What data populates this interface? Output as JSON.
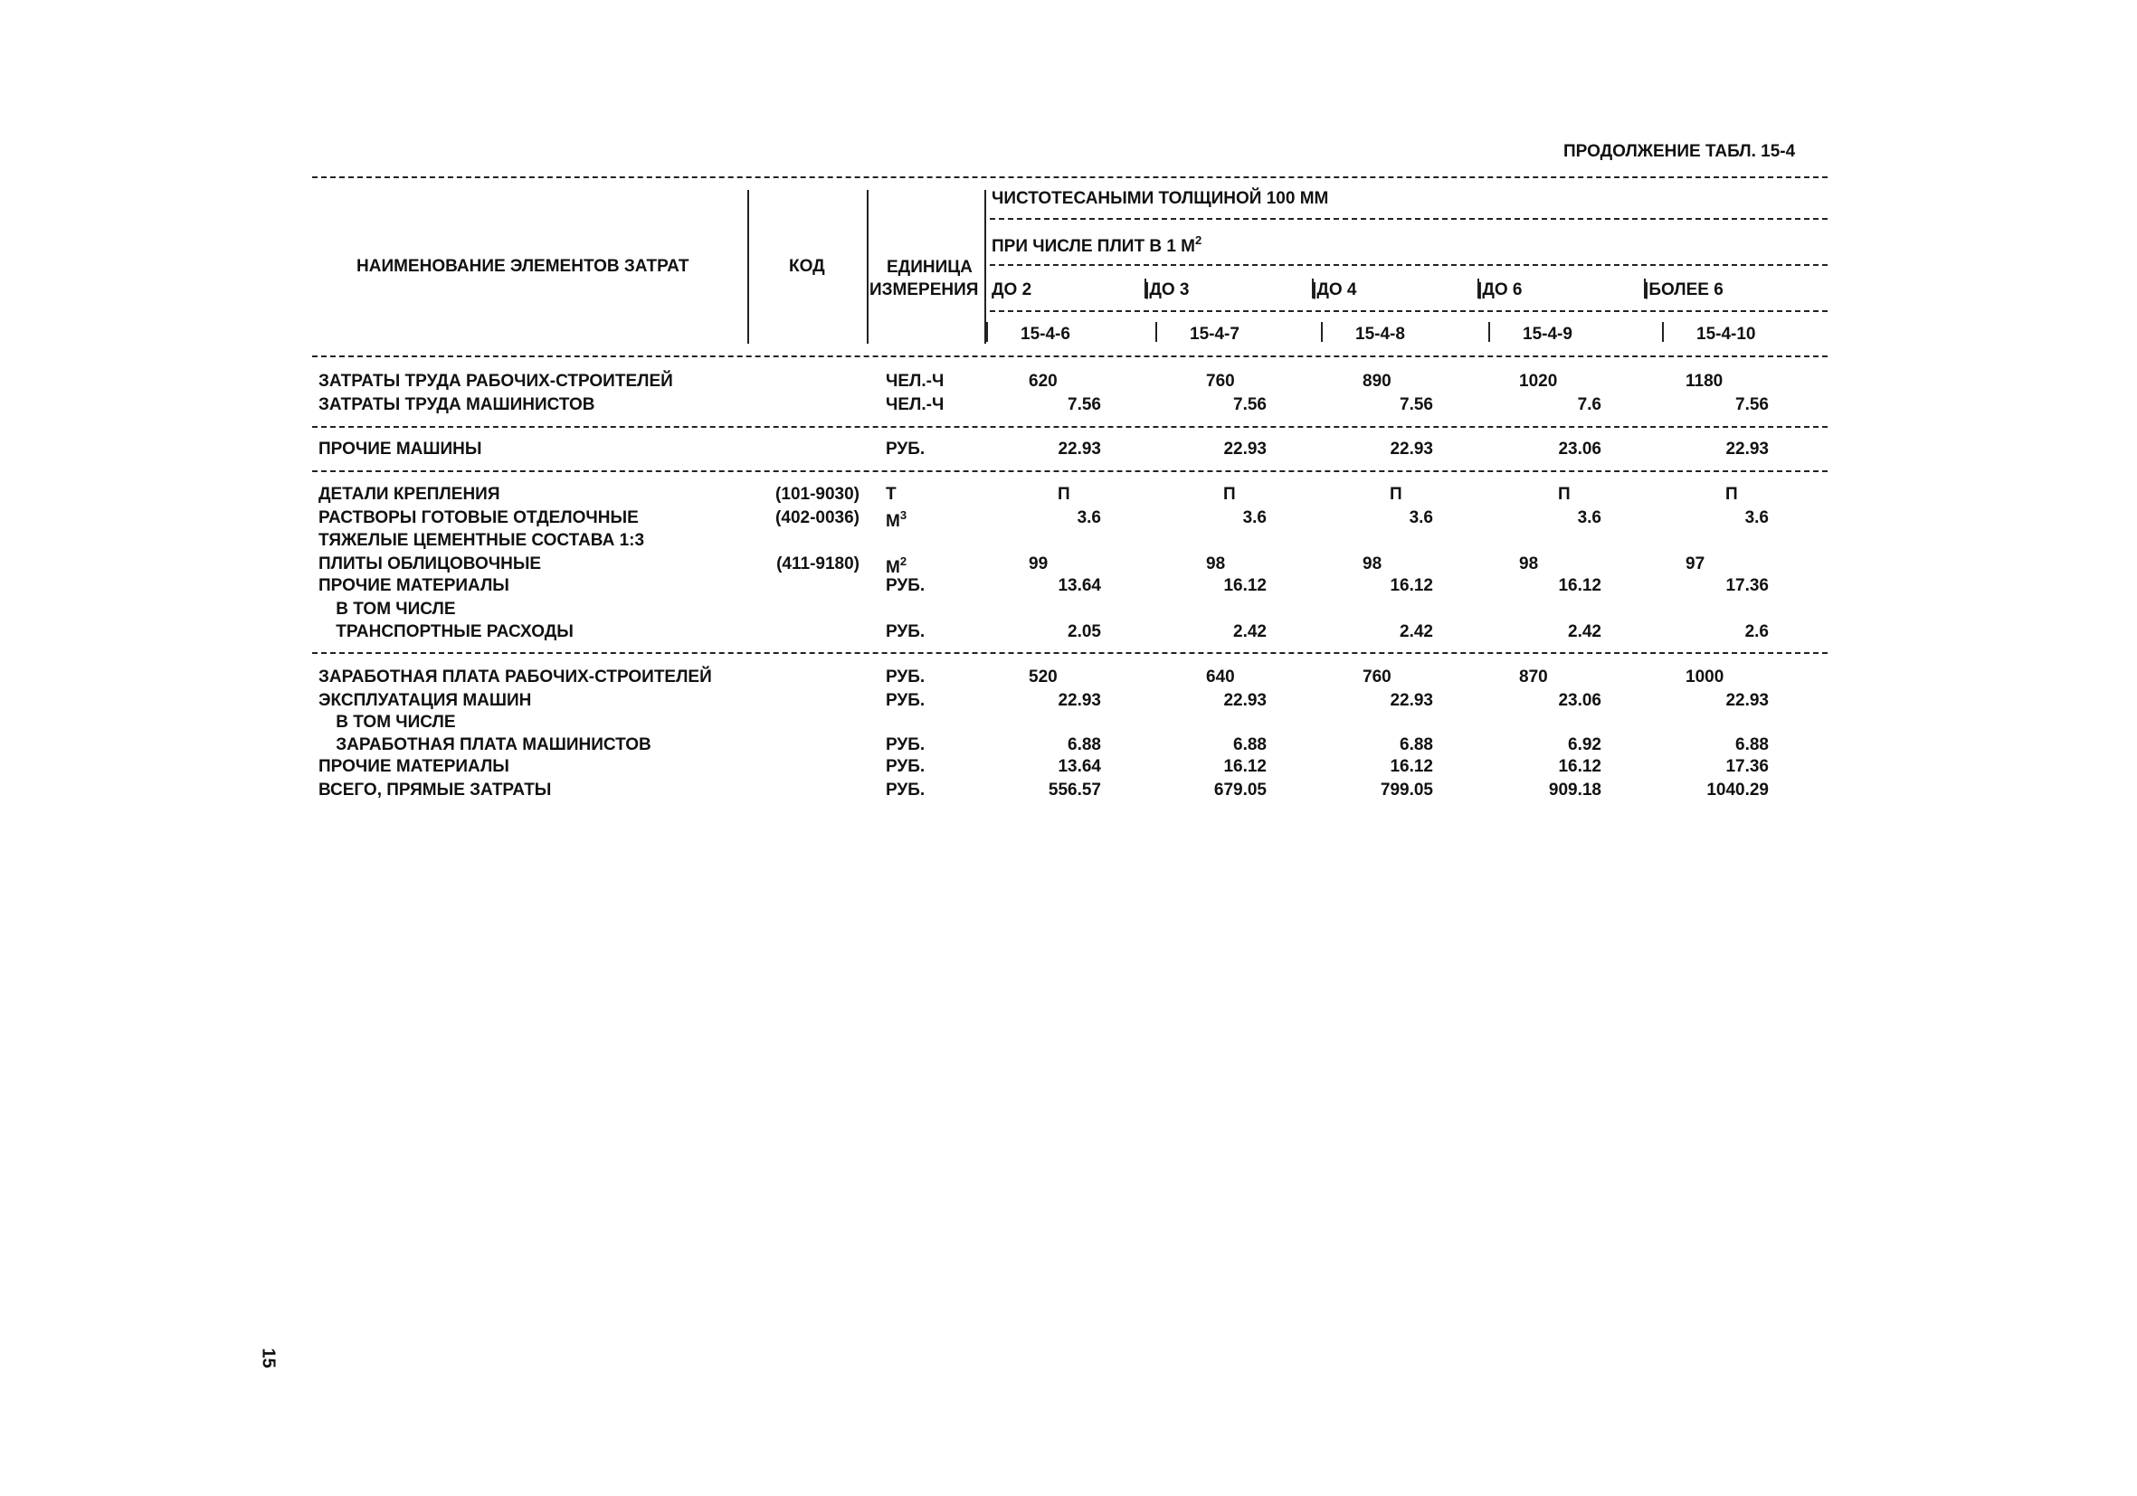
{
  "caption": "ПРОДОЛЖЕНИЕ ТАБЛ. 15-4",
  "header": {
    "name_col": "НАИМЕНОВАНИЕ ЭЛЕМЕНТОВ ЗАТРАТ",
    "code_col": "КОД",
    "unit_col_line1": "ЕДИНИЦА",
    "unit_col_line2": "ИЗМЕРЕНИЯ",
    "group_title": "ЧИСТОТЕСАНЫМИ ТОЛЩИНОЙ 100 ММ",
    "subgroup_title": "ПРИ ЧИСЛЕ ПЛИТ В 1 М",
    "subgroup_sup": "2",
    "ranges": [
      "ДО 2",
      "ДО 3",
      "ДО 4",
      "ДО 6",
      "БОЛЕЕ 6"
    ],
    "codes": [
      "15-4-6",
      "15-4-7",
      "15-4-8",
      "15-4-9",
      "15-4-10"
    ]
  },
  "rows": [
    {
      "name": "ЗАТРАТЫ ТРУДА РАБОЧИХ-СТРОИТЕЛЕЙ",
      "code": "",
      "unit": "ЧЕЛ.-Ч",
      "unit_sup": "",
      "values": [
        "620",
        "760",
        "890",
        "1020",
        "1180"
      ]
    },
    {
      "name": "ЗАТРАТЫ ТРУДА МАШИНИСТОВ",
      "code": "",
      "unit": "ЧЕЛ.-Ч",
      "unit_sup": "",
      "values": [
        "7.56",
        "7.56",
        "7.56",
        "7.6",
        "7.56"
      ]
    },
    {
      "name": "ПРОЧИЕ МАШИНЫ",
      "code": "",
      "unit": "РУБ.",
      "unit_sup": "",
      "values": [
        "22.93",
        "22.93",
        "22.93",
        "23.06",
        "22.93"
      ]
    },
    {
      "name": "ДЕТАЛИ КРЕПЛЕНИЯ",
      "code": "(101-9030)",
      "unit": "Т",
      "unit_sup": "",
      "values": [
        "П",
        "П",
        "П",
        "П",
        "П"
      ]
    },
    {
      "name": "РАСТВОРЫ ГОТОВЫЕ ОТДЕЛОЧНЫЕ",
      "code": "(402-0036)",
      "unit": "М",
      "unit_sup": "3",
      "values": [
        "3.6",
        "3.6",
        "3.6",
        "3.6",
        "3.6"
      ]
    },
    {
      "name": "ТЯЖЕЛЫЕ ЦЕМЕНТНЫЕ СОСТАВА 1:3",
      "code": "",
      "unit": "",
      "unit_sup": "",
      "values": [
        "",
        "",
        "",
        "",
        ""
      ]
    },
    {
      "name": "ПЛИТЫ ОБЛИЦОВОЧНЫЕ",
      "code": "(411-9180)",
      "unit": "М",
      "unit_sup": "2",
      "values": [
        "99",
        "98",
        "98",
        "98",
        "97"
      ]
    },
    {
      "name": "ПРОЧИЕ МАТЕРИАЛЫ",
      "code": "",
      "unit": "РУБ.",
      "unit_sup": "",
      "values": [
        "13.64",
        "16.12",
        "16.12",
        "16.12",
        "17.36"
      ]
    },
    {
      "name": " В ТОМ ЧИСЛЕ",
      "code": "",
      "unit": "",
      "unit_sup": "",
      "values": [
        "",
        "",
        "",
        "",
        ""
      ]
    },
    {
      "name": " ТРАНСПОРТНЫЕ РАСХОДЫ",
      "code": "",
      "unit": "РУБ.",
      "unit_sup": "",
      "values": [
        "2.05",
        "2.42",
        "2.42",
        "2.42",
        "2.6"
      ]
    },
    {
      "name": "ЗАРАБОТНАЯ ПЛАТА РАБОЧИХ-СТРОИТЕЛЕЙ",
      "code": "",
      "unit": "РУБ.",
      "unit_sup": "",
      "values": [
        "520",
        "640",
        "760",
        "870",
        "1000"
      ]
    },
    {
      "name": "ЭКСПЛУАТАЦИЯ МАШИН",
      "code": "",
      "unit": "РУБ.",
      "unit_sup": "",
      "values": [
        "22.93",
        "22.93",
        "22.93",
        "23.06",
        "22.93"
      ]
    },
    {
      "name": " В ТОМ ЧИСЛЕ",
      "code": "",
      "unit": "",
      "unit_sup": "",
      "values": [
        "",
        "",
        "",
        "",
        ""
      ]
    },
    {
      "name": " ЗАРАБОТНАЯ ПЛАТА МАШИНИСТОВ",
      "code": "",
      "unit": "РУБ.",
      "unit_sup": "",
      "values": [
        "6.88",
        "6.88",
        "6.88",
        "6.92",
        "6.88"
      ]
    },
    {
      "name": "ПРОЧИЕ МАТЕРИАЛЫ",
      "code": "",
      "unit": "РУБ.",
      "unit_sup": "",
      "values": [
        "13.64",
        "16.12",
        "16.12",
        "16.12",
        "17.36"
      ]
    },
    {
      "name": "ВСЕГО, ПРЯМЫЕ ЗАТРАТЫ",
      "code": "",
      "unit": "РУБ.",
      "unit_sup": "",
      "values": [
        "556.57",
        "679.05",
        "799.05",
        "909.18",
        "1040.29"
      ]
    }
  ],
  "page_number": "15"
}
